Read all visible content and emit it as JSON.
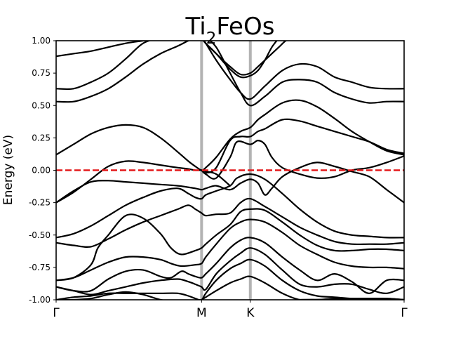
{
  "chart_data": {
    "type": "line",
    "title": {
      "base": "Ti",
      "sub": "2",
      "rest": "FeOs"
    },
    "xlabel": "",
    "ylabel": "Energy (eV)",
    "ylim": [
      -1.0,
      1.0
    ],
    "y_ticks": [
      "-1.00",
      "-0.75",
      "-0.50",
      "-0.25",
      "0.00",
      "0.25",
      "0.50",
      "0.75",
      "1.00"
    ],
    "high_symmetry_points": [
      {
        "label": "Γ",
        "k": 0.0
      },
      {
        "label": "M",
        "k": 0.418
      },
      {
        "label": "K",
        "k": 0.558
      },
      {
        "label": "Γ",
        "k": 1.0
      }
    ],
    "fermi_level": {
      "energy": 0.0,
      "color": "#e41a1c",
      "style": "dashed"
    },
    "grid": false,
    "band_color": "#000000",
    "vline_color": "#b3b3b3",
    "bands": [
      {
        "k": [
          0,
          0.05,
          0.1,
          0.15,
          0.2,
          0.25,
          0.3,
          0.32
        ],
        "energy": [
          0.88,
          0.9,
          0.92,
          0.95,
          0.98,
          1.0,
          1.02,
          1.02
        ]
      },
      {
        "k": [
          0,
          0.05,
          0.1,
          0.15,
          0.2,
          0.25,
          0.3,
          0.35,
          0.42,
          0.5,
          0.558,
          0.6,
          0.7,
          0.8,
          0.9,
          1.0
        ],
        "energy": [
          -1.0,
          -1.0,
          -0.99,
          -0.96,
          -0.94,
          -0.96,
          -1.0,
          -1.02,
          -1.02,
          -1.02,
          -1.02,
          -1.02,
          -1.0,
          -1.0,
          -1.0,
          -1.0
        ]
      },
      {
        "k": [
          0,
          0.05,
          0.1,
          0.15,
          0.2,
          0.25,
          0.3,
          0.33,
          0.35,
          0.38,
          0.4,
          0.418,
          0.43,
          0.46,
          0.5,
          0.53,
          0.558,
          0.6,
          0.65,
          0.7,
          0.75,
          0.8,
          0.85,
          0.9,
          0.95,
          1.0
        ],
        "energy": [
          0.63,
          0.63,
          0.68,
          0.75,
          0.86,
          0.98,
          1.02,
          1.02,
          1.02,
          1.02,
          1.02,
          1.02,
          0.98,
          0.85,
          0.7,
          0.6,
          0.55,
          0.65,
          0.77,
          0.82,
          0.8,
          0.72,
          0.68,
          0.64,
          0.63,
          0.63
        ]
      },
      {
        "k": [
          0,
          0.05,
          0.1,
          0.15,
          0.2,
          0.25,
          0.3,
          0.35,
          0.38,
          0.4,
          0.418,
          0.43,
          0.46,
          0.5,
          0.53,
          0.558,
          0.6,
          0.65,
          0.7,
          0.75,
          0.8,
          0.85,
          0.9,
          0.95,
          1.0
        ],
        "energy": [
          0.53,
          0.53,
          0.57,
          0.63,
          0.72,
          0.82,
          0.9,
          0.96,
          1.0,
          1.02,
          1.02,
          1.02,
          0.95,
          0.75,
          0.6,
          0.5,
          0.57,
          0.68,
          0.7,
          0.68,
          0.6,
          0.55,
          0.52,
          0.53,
          0.53
        ]
      },
      {
        "k": [
          0.418,
          0.43,
          0.46,
          0.5,
          0.53,
          0.558,
          0.58,
          0.6,
          0.62,
          0.64,
          0.66,
          0.68
        ],
        "energy": [
          1.02,
          0.98,
          0.9,
          0.8,
          0.74,
          0.75,
          0.8,
          0.85,
          0.9,
          0.95,
          1.0,
          1.02
        ]
      },
      {
        "k": [
          0.418,
          0.43,
          0.46,
          0.5,
          0.53,
          0.558,
          0.58,
          0.6,
          0.62,
          0.64
        ],
        "energy": [
          1.02,
          0.98,
          0.9,
          0.78,
          0.72,
          0.73,
          0.77,
          0.85,
          0.95,
          1.02
        ]
      },
      {
        "k": [
          0,
          0.05,
          0.1,
          0.15,
          0.2,
          0.25,
          0.3,
          0.35,
          0.38,
          0.4,
          0.418,
          0.43,
          0.46,
          0.5,
          0.53,
          0.558,
          0.58,
          0.6,
          0.65,
          0.7,
          0.75,
          0.8,
          0.85,
          0.9,
          0.95,
          1.0
        ],
        "energy": [
          0.12,
          0.2,
          0.28,
          0.33,
          0.35,
          0.33,
          0.25,
          0.14,
          0.07,
          0.03,
          0.0,
          0.02,
          0.1,
          0.24,
          0.3,
          0.33,
          0.39,
          0.43,
          0.52,
          0.54,
          0.49,
          0.4,
          0.3,
          0.22,
          0.15,
          0.12
        ]
      },
      {
        "k": [
          0.418,
          0.43,
          0.46,
          0.5,
          0.53,
          0.558,
          0.58,
          0.6,
          0.65,
          0.7,
          0.75,
          0.8,
          0.85,
          0.9,
          0.95,
          1.0
        ],
        "energy": [
          0.0,
          -0.02,
          0.02,
          0.23,
          0.26,
          0.26,
          0.3,
          0.32,
          0.39,
          0.38,
          0.34,
          0.3,
          0.26,
          0.22,
          0.16,
          0.13
        ]
      },
      {
        "k": [
          0.418,
          0.43,
          0.46,
          0.5,
          0.52,
          0.558,
          0.58,
          0.6,
          0.62,
          0.65,
          0.7,
          0.75,
          0.8,
          0.85,
          0.9,
          0.95,
          1.0
        ],
        "energy": [
          0.0,
          -0.03,
          -0.06,
          0.1,
          0.22,
          0.2,
          0.23,
          0.2,
          0.1,
          0.02,
          -0.03,
          -0.06,
          -0.05,
          0.0,
          0.02,
          0.06,
          0.11
        ]
      },
      {
        "k": [
          0,
          0.05,
          0.1,
          0.15,
          0.2,
          0.25,
          0.3,
          0.35,
          0.38,
          0.4,
          0.418,
          0.43,
          0.46,
          0.5
        ],
        "energy": [
          -0.25,
          -0.17,
          -0.07,
          0.03,
          0.07,
          0.06,
          0.04,
          0.02,
          0.01,
          0.0,
          0.0,
          -0.01,
          -0.03,
          -0.12
        ]
      },
      {
        "k": [
          0,
          0.05,
          0.1,
          0.15,
          0.2,
          0.25,
          0.3,
          0.35,
          0.4,
          0.418,
          0.43,
          0.46,
          0.5,
          0.53,
          0.558,
          0.58,
          0.6,
          0.62,
          0.65,
          0.7,
          0.75,
          0.8,
          0.85,
          0.9,
          0.95,
          1.0
        ],
        "energy": [
          -0.25,
          -0.16,
          -0.09,
          -0.08,
          -0.09,
          -0.1,
          -0.11,
          -0.12,
          -0.14,
          -0.15,
          -0.14,
          -0.12,
          -0.15,
          -0.1,
          -0.07,
          -0.1,
          -0.19,
          -0.14,
          -0.05,
          0.02,
          0.06,
          0.03,
          -0.01,
          -0.05,
          -0.15,
          -0.25
        ]
      },
      {
        "k": [
          0,
          0.05,
          0.1,
          0.15,
          0.2,
          0.25,
          0.3,
          0.35,
          0.38,
          0.4,
          0.418,
          0.43,
          0.46,
          0.5,
          0.52,
          0.558,
          0.6,
          0.65,
          0.7,
          0.75,
          0.8,
          0.85,
          0.9,
          0.95,
          1.0
        ],
        "energy": [
          -0.52,
          -0.49,
          -0.43,
          -0.35,
          -0.27,
          -0.21,
          -0.16,
          -0.14,
          -0.18,
          -0.21,
          -0.22,
          -0.19,
          -0.16,
          -0.12,
          -0.06,
          -0.03,
          -0.07,
          -0.18,
          -0.3,
          -0.4,
          -0.47,
          -0.5,
          -0.51,
          -0.52,
          -0.52
        ]
      },
      {
        "k": [
          0,
          0.05,
          0.1,
          0.15,
          0.2,
          0.25,
          0.3,
          0.35,
          0.38,
          0.4,
          0.418,
          0.43,
          0.46,
          0.5,
          0.53,
          0.558,
          0.6,
          0.65,
          0.7,
          0.75,
          0.8,
          0.85,
          0.9,
          0.95,
          1.0
        ],
        "energy": [
          -0.56,
          -0.58,
          -0.59,
          -0.53,
          -0.46,
          -0.4,
          -0.35,
          -0.3,
          -0.27,
          -0.3,
          -0.33,
          -0.35,
          -0.34,
          -0.33,
          -0.25,
          -0.22,
          -0.28,
          -0.36,
          -0.44,
          -0.5,
          -0.55,
          -0.57,
          -0.57,
          -0.57,
          -0.56
        ]
      },
      {
        "k": [
          0,
          0.05,
          0.1,
          0.12,
          0.15,
          0.2,
          0.25,
          0.3,
          0.33,
          0.36,
          0.4,
          0.418,
          0.43,
          0.46,
          0.5,
          0.53,
          0.558,
          0.6,
          0.65,
          0.7,
          0.75,
          0.8,
          0.85,
          0.9,
          0.95,
          1.0
        ],
        "energy": [
          -0.85,
          -0.83,
          -0.73,
          -0.6,
          -0.5,
          -0.35,
          -0.37,
          -0.49,
          -0.6,
          -0.65,
          -0.62,
          -0.6,
          -0.57,
          -0.5,
          -0.42,
          -0.32,
          -0.3,
          -0.31,
          -0.4,
          -0.5,
          -0.58,
          -0.62,
          -0.62,
          -0.61,
          -0.61,
          -0.62
        ]
      },
      {
        "k": [
          0,
          0.05,
          0.1,
          0.15,
          0.2,
          0.25,
          0.3,
          0.33,
          0.36,
          0.4,
          0.418,
          0.43,
          0.46,
          0.5,
          0.53,
          0.558,
          0.6,
          0.65,
          0.7,
          0.75,
          0.8,
          0.85,
          0.9,
          0.95,
          1.0
        ],
        "energy": [
          -0.85,
          -0.83,
          -0.77,
          -0.71,
          -0.67,
          -0.67,
          -0.69,
          -0.72,
          -0.74,
          -0.73,
          -0.72,
          -0.67,
          -0.57,
          -0.45,
          -0.4,
          -0.38,
          -0.4,
          -0.48,
          -0.58,
          -0.65,
          -0.71,
          -0.74,
          -0.75,
          -0.75,
          -0.76
        ]
      },
      {
        "k": [
          0,
          0.05,
          0.1,
          0.15,
          0.2,
          0.25,
          0.3,
          0.33,
          0.36,
          0.38,
          0.4,
          0.418,
          0.43,
          0.46,
          0.5,
          0.53,
          0.558,
          0.6,
          0.65,
          0.7,
          0.75,
          0.8,
          0.85,
          0.9,
          0.95,
          1.0
        ],
        "energy": [
          -0.9,
          -0.93,
          -0.93,
          -0.84,
          -0.78,
          -0.77,
          -0.82,
          -0.83,
          -0.78,
          -0.8,
          -0.82,
          -0.83,
          -0.8,
          -0.72,
          -0.6,
          -0.54,
          -0.52,
          -0.56,
          -0.67,
          -0.77,
          -0.85,
          -0.8,
          -0.86,
          -0.95,
          -0.85,
          -0.85
        ]
      },
      {
        "k": [
          0,
          0.05,
          0.1,
          0.15,
          0.2,
          0.25,
          0.3,
          0.35,
          0.38,
          0.4,
          0.418,
          0.43,
          0.46,
          0.5,
          0.53,
          0.558,
          0.6,
          0.65,
          0.7,
          0.75,
          0.8,
          0.85,
          0.9,
          0.95,
          1.0
        ],
        "energy": [
          -0.9,
          -0.93,
          -0.96,
          -0.93,
          -0.9,
          -0.87,
          -0.85,
          -0.84,
          -0.86,
          -0.88,
          -0.9,
          -0.92,
          -0.8,
          -0.7,
          -0.64,
          -0.6,
          -0.65,
          -0.77,
          -0.88,
          -0.9,
          -0.88,
          -0.88,
          -0.92,
          -0.95,
          -0.9
        ]
      },
      {
        "k": [
          0,
          0.05,
          0.1,
          0.15,
          0.2,
          0.25,
          0.3,
          0.35,
          0.38,
          0.4,
          0.418,
          0.43,
          0.46,
          0.5,
          0.53,
          0.558,
          0.6,
          0.65,
          0.7,
          0.75,
          0.8,
          0.85,
          0.9,
          0.95,
          1.0
        ],
        "energy": [
          -1.0,
          -0.98,
          -0.97,
          -0.95,
          -0.95,
          -0.95,
          -0.95,
          -0.95,
          -0.97,
          -0.99,
          -1.0,
          -0.95,
          -0.85,
          -0.76,
          -0.72,
          -0.69,
          -0.74,
          -0.85,
          -0.93,
          -0.97,
          -0.98,
          -0.99,
          -0.99,
          -0.99,
          -1.0
        ]
      },
      {
        "k": [
          0.418,
          0.43,
          0.46,
          0.5,
          0.53,
          0.558,
          0.6,
          0.65,
          0.7,
          0.75,
          0.8,
          0.85,
          0.9,
          0.95,
          1.0
        ],
        "energy": [
          -1.0,
          -0.98,
          -0.93,
          -0.87,
          -0.84,
          -0.82,
          -0.87,
          -0.95,
          -1.0,
          -1.0,
          -0.99,
          -0.99,
          -0.99,
          -0.99,
          -1.0
        ]
      }
    ]
  }
}
